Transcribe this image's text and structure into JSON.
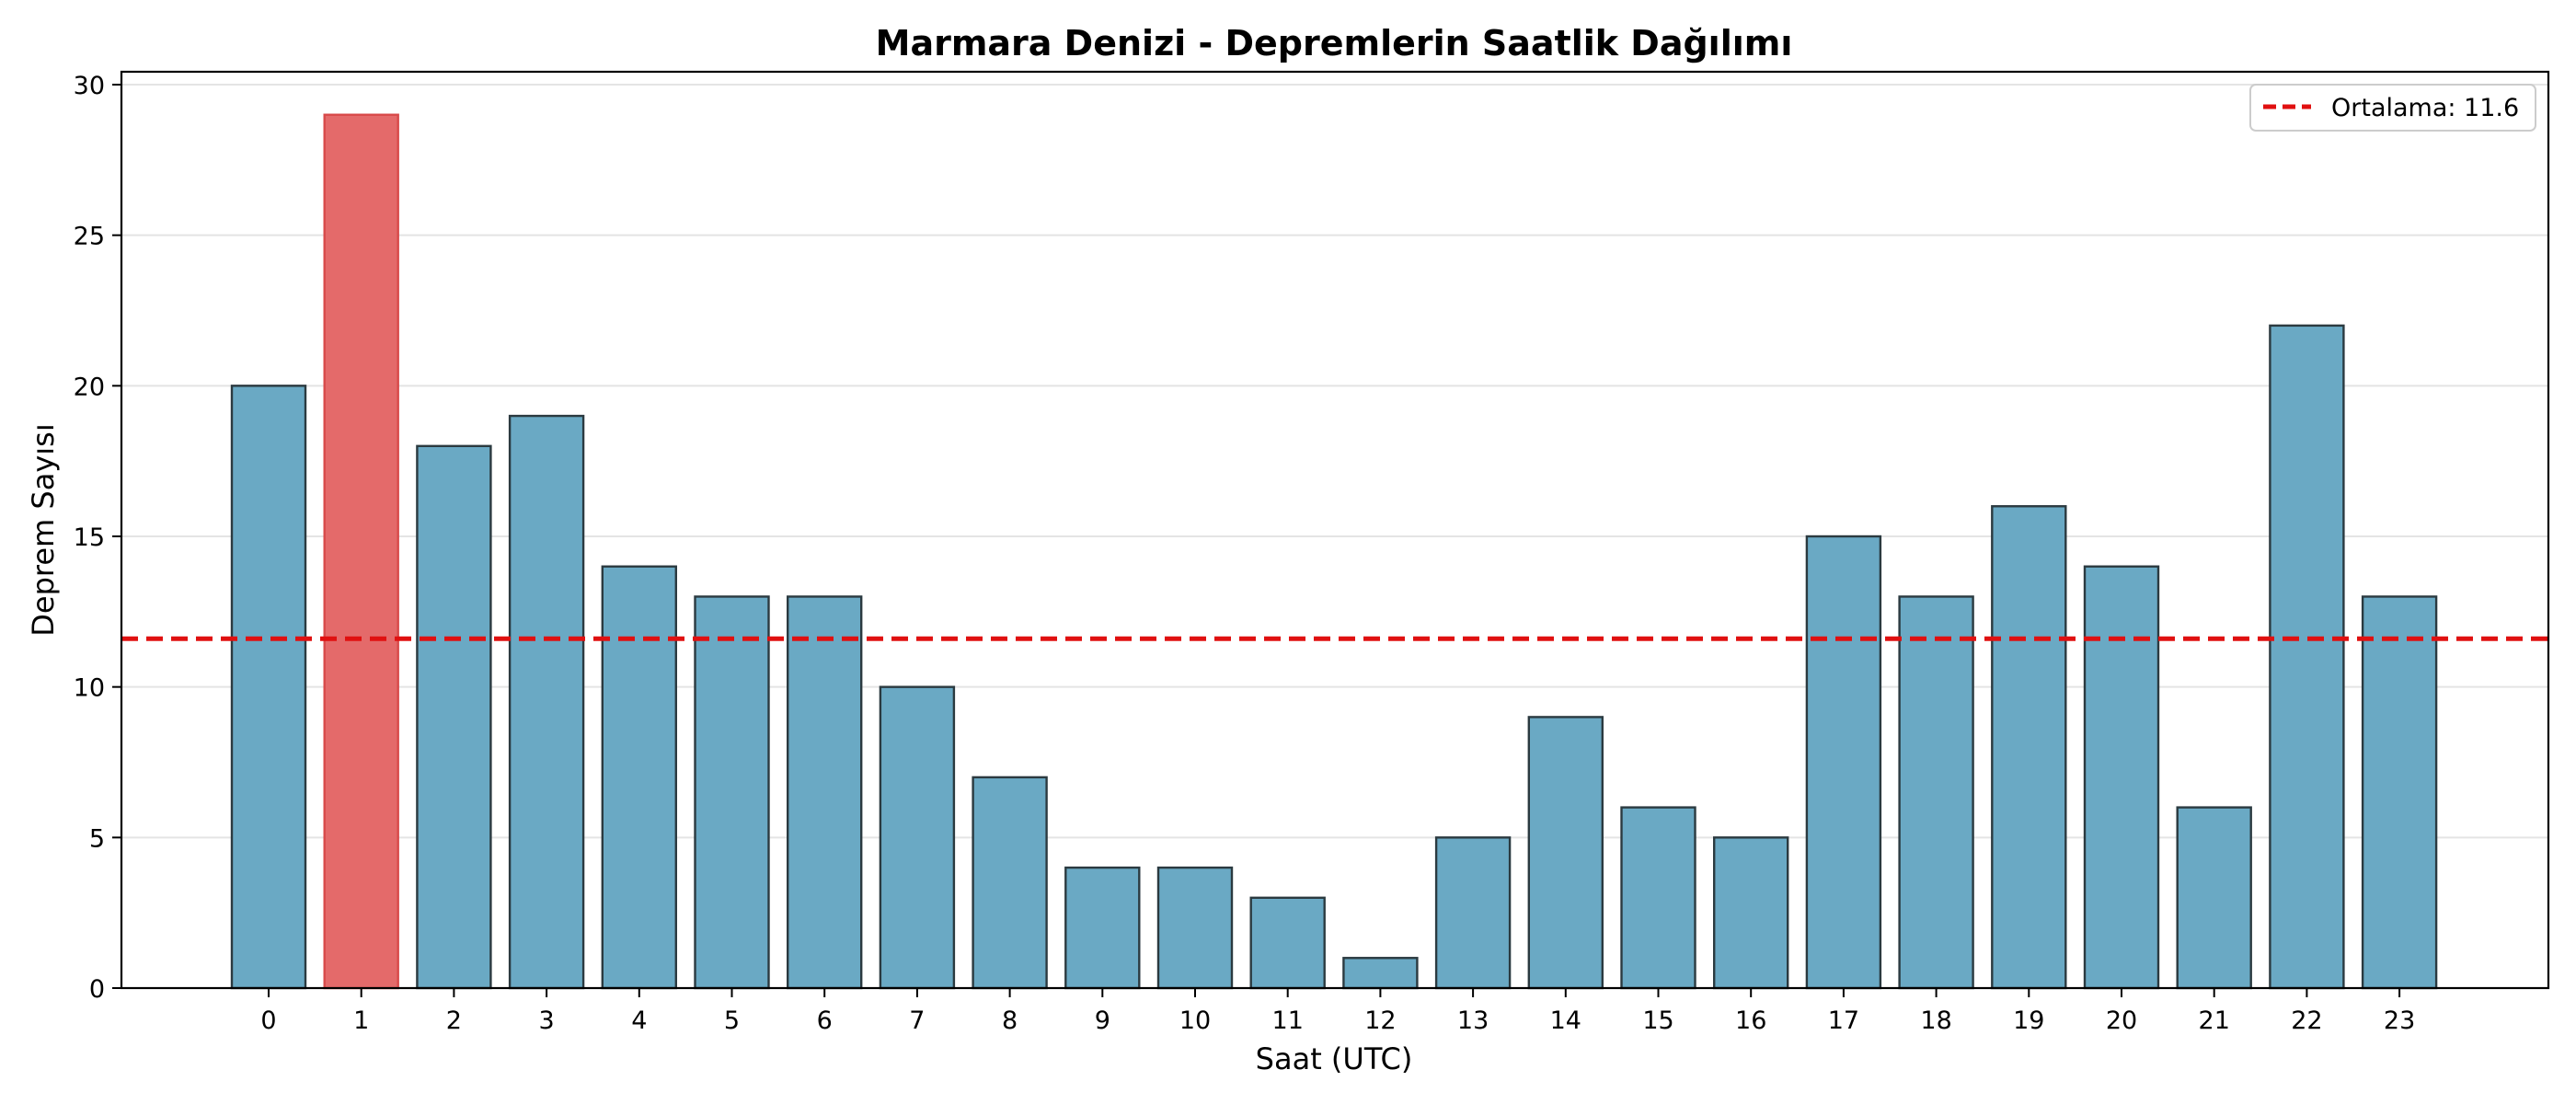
{
  "chart_data": {
    "type": "bar",
    "title": "Marmara Denizi - Depremlerin Saatlik Dağılımı",
    "xlabel": "Saat (UTC)",
    "ylabel": "Deprem Sayısı",
    "categories": [
      "0",
      "1",
      "2",
      "3",
      "4",
      "5",
      "6",
      "7",
      "8",
      "9",
      "10",
      "11",
      "12",
      "13",
      "14",
      "15",
      "16",
      "17",
      "18",
      "19",
      "20",
      "21",
      "22",
      "23"
    ],
    "values": [
      20,
      29,
      18,
      19,
      14,
      13,
      13,
      10,
      7,
      4,
      4,
      3,
      1,
      5,
      9,
      6,
      5,
      15,
      13,
      16,
      14,
      6,
      22,
      13
    ],
    "highlight_index": 1,
    "ylim": [
      0,
      30
    ],
    "yticks": [
      0,
      5,
      10,
      15,
      20,
      25,
      30
    ],
    "grid": "horizontal",
    "bar_color": "#6aa9c4",
    "highlight_color": "#e46a6a",
    "mean": 11.6,
    "mean_line_color": "#e01010",
    "legend": {
      "label": "Ortalama: 11.6",
      "position": "top-right"
    }
  }
}
